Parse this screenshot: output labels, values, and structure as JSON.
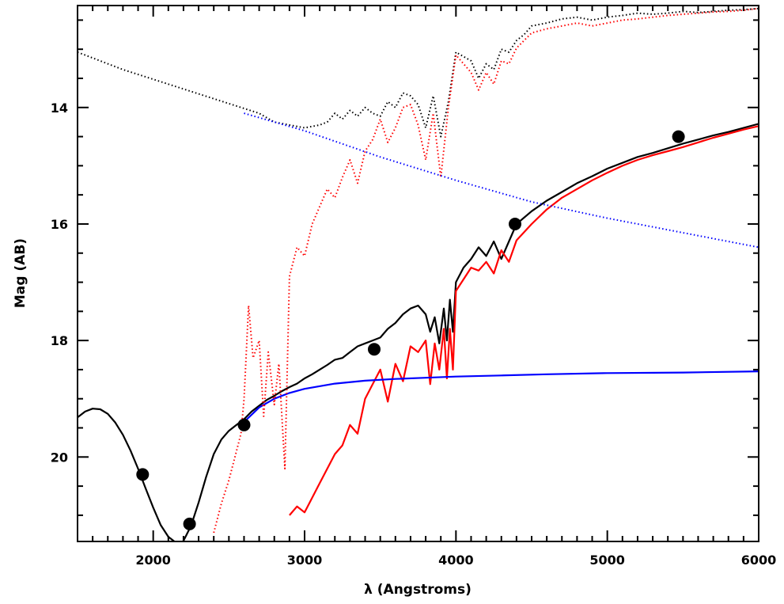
{
  "chart_data": {
    "type": "line",
    "title": "",
    "xlabel": "λ (Angstroms)",
    "ylabel": "Mag (AB)",
    "xlim": [
      1500,
      6000
    ],
    "ylim": [
      21.45,
      12.25
    ],
    "y_inverted": true,
    "x_ticks": [
      2000,
      3000,
      4000,
      5000,
      6000
    ],
    "x_tick_labels": [
      "2000",
      "3000",
      "4000",
      "5000",
      "6000"
    ],
    "y_ticks": [
      14,
      16,
      18,
      20
    ],
    "y_tick_labels": [
      "14",
      "16",
      "18",
      "20"
    ],
    "grid": false,
    "legend": "none",
    "colors": {
      "black": "#000000",
      "red": "#ff0000",
      "blue": "#0000ff"
    },
    "series": [
      {
        "style": "solid",
        "color": "#000000",
        "x": [
          1500,
          1550,
          1600,
          1650,
          1700,
          1750,
          1800,
          1850,
          1900,
          1950,
          2000,
          2050,
          2100,
          2150,
          2175,
          2200,
          2250,
          2300,
          2350,
          2400,
          2450,
          2500,
          2550,
          2600,
          2650,
          2700,
          2750,
          2800,
          2850,
          2900,
          2950,
          3000,
          3050,
          3100,
          3150,
          3200,
          3250,
          3300,
          3350,
          3400,
          3450,
          3500,
          3550,
          3600,
          3650,
          3700,
          3750,
          3800,
          3830,
          3860,
          3890,
          3920,
          3940,
          3960,
          3980,
          4000,
          4050,
          4100,
          4150,
          4200,
          4250,
          4300,
          4350,
          4400,
          4500,
          4600,
          4700,
          4800,
          4900,
          5000,
          5100,
          5200,
          5300,
          5400,
          5500,
          5600,
          5700,
          5800,
          5900,
          6000
        ],
        "y": [
          19.32,
          19.22,
          19.17,
          19.18,
          19.26,
          19.41,
          19.62,
          19.89,
          20.2,
          20.54,
          20.87,
          21.17,
          21.37,
          21.47,
          21.48,
          21.44,
          21.18,
          20.78,
          20.34,
          19.95,
          19.7,
          19.55,
          19.45,
          19.35,
          19.22,
          19.12,
          19.02,
          18.95,
          18.87,
          18.8,
          18.74,
          18.65,
          18.58,
          18.5,
          18.42,
          18.33,
          18.3,
          18.2,
          18.1,
          18.05,
          18.0,
          17.95,
          17.8,
          17.7,
          17.55,
          17.45,
          17.4,
          17.55,
          17.85,
          17.6,
          18.05,
          17.45,
          18.0,
          17.3,
          17.85,
          17.0,
          16.75,
          16.6,
          16.4,
          16.55,
          16.3,
          16.6,
          16.3,
          16.0,
          15.78,
          15.6,
          15.45,
          15.3,
          15.18,
          15.05,
          14.95,
          14.85,
          14.78,
          14.7,
          14.62,
          14.55,
          14.48,
          14.42,
          14.35,
          14.28
        ]
      },
      {
        "style": "solid",
        "color": "#ff0000",
        "x": [
          2900,
          2950,
          3000,
          3050,
          3100,
          3150,
          3200,
          3250,
          3300,
          3350,
          3400,
          3450,
          3500,
          3550,
          3600,
          3650,
          3700,
          3750,
          3800,
          3830,
          3860,
          3890,
          3920,
          3940,
          3960,
          3980,
          4000,
          4050,
          4100,
          4150,
          4200,
          4250,
          4300,
          4350,
          4400,
          4500,
          4600,
          4700,
          4800,
          4900,
          5000,
          5100,
          5200,
          5300,
          5400,
          5500,
          5600,
          5700,
          5800,
          5900,
          6000
        ],
        "y": [
          21.0,
          20.85,
          20.95,
          20.7,
          20.45,
          20.2,
          19.95,
          19.8,
          19.45,
          19.6,
          19.0,
          18.75,
          18.5,
          19.05,
          18.4,
          18.7,
          18.1,
          18.2,
          18.0,
          18.75,
          18.05,
          18.5,
          17.8,
          18.65,
          17.8,
          18.5,
          17.15,
          16.95,
          16.75,
          16.8,
          16.65,
          16.85,
          16.45,
          16.65,
          16.28,
          16.0,
          15.75,
          15.55,
          15.4,
          15.25,
          15.12,
          15.0,
          14.9,
          14.82,
          14.75,
          14.68,
          14.6,
          14.52,
          14.45,
          14.38,
          14.32
        ]
      },
      {
        "style": "solid",
        "color": "#0000ff",
        "x": [
          2600,
          2700,
          2800,
          2900,
          3000,
          3200,
          3400,
          3600,
          3800,
          4000,
          4300,
          4600,
          5000,
          5500,
          6000
        ],
        "y": [
          19.4,
          19.15,
          19.0,
          18.9,
          18.83,
          18.74,
          18.69,
          18.66,
          18.64,
          18.62,
          18.6,
          18.58,
          18.56,
          18.55,
          18.53
        ]
      },
      {
        "style": "dotted",
        "color": "#000000",
        "x": [
          1500,
          1800,
          2100,
          2400,
          2700,
          2800,
          2900,
          3000,
          3100,
          3150,
          3200,
          3250,
          3300,
          3350,
          3400,
          3450,
          3500,
          3550,
          3600,
          3650,
          3700,
          3750,
          3800,
          3850,
          3900,
          3950,
          4000,
          4100,
          4150,
          4200,
          4250,
          4300,
          4350,
          4400,
          4450,
          4500,
          4600,
          4700,
          4800,
          4900,
          5000,
          5100,
          5200,
          5300,
          5400,
          5500,
          5600,
          5700,
          5800,
          5900,
          6000
        ],
        "y": [
          13.05,
          13.35,
          13.6,
          13.85,
          14.1,
          14.25,
          14.3,
          14.35,
          14.3,
          14.25,
          14.1,
          14.2,
          14.05,
          14.15,
          14.0,
          14.1,
          14.15,
          13.9,
          14.0,
          13.75,
          13.8,
          13.95,
          14.35,
          13.8,
          14.5,
          13.9,
          13.05,
          13.2,
          13.5,
          13.25,
          13.35,
          13.0,
          13.05,
          12.85,
          12.75,
          12.6,
          12.55,
          12.48,
          12.45,
          12.5,
          12.45,
          12.42,
          12.38,
          12.4,
          12.38,
          12.35,
          12.37,
          12.35,
          12.33,
          12.32,
          12.3
        ]
      },
      {
        "style": "dotted",
        "color": "#ff0000",
        "x": [
          2400,
          2450,
          2500,
          2550,
          2580,
          2600,
          2630,
          2660,
          2700,
          2730,
          2760,
          2800,
          2830,
          2870,
          2900,
          2950,
          3000,
          3050,
          3100,
          3150,
          3200,
          3250,
          3300,
          3350,
          3400,
          3450,
          3500,
          3550,
          3600,
          3650,
          3700,
          3750,
          3800,
          3850,
          3900,
          3950,
          4000,
          4100,
          4150,
          4200,
          4250,
          4300,
          4350,
          4400,
          4450,
          4500,
          4600,
          4700,
          4800,
          4900,
          5000,
          5100,
          5200,
          5300,
          5400,
          5500,
          5600,
          5700,
          5800,
          5900,
          6000
        ],
        "y": [
          21.3,
          20.8,
          20.4,
          19.9,
          19.6,
          19.0,
          17.4,
          18.3,
          18.0,
          19.3,
          18.2,
          19.1,
          18.4,
          20.2,
          16.9,
          16.4,
          16.55,
          16.0,
          15.7,
          15.4,
          15.55,
          15.2,
          14.9,
          15.3,
          14.75,
          14.55,
          14.2,
          14.6,
          14.35,
          14.0,
          13.95,
          14.3,
          14.9,
          14.1,
          15.2,
          14.0,
          13.1,
          13.4,
          13.7,
          13.4,
          13.6,
          13.2,
          13.25,
          12.98,
          12.85,
          12.72,
          12.65,
          12.6,
          12.55,
          12.6,
          12.55,
          12.5,
          12.48,
          12.45,
          12.42,
          12.4,
          12.38,
          12.36,
          12.35,
          12.33,
          12.3
        ]
      },
      {
        "style": "dotted",
        "color": "#0000ff",
        "x": [
          2600,
          3000,
          3500,
          4000,
          4500,
          5000,
          5500,
          6000
        ],
        "y": [
          14.1,
          14.4,
          14.85,
          15.25,
          15.62,
          15.9,
          16.15,
          16.4
        ]
      },
      {
        "style": "points",
        "color": "#000000",
        "x": [
          1930,
          2240,
          2600,
          3460,
          4390,
          5470
        ],
        "y": [
          20.3,
          21.15,
          19.45,
          18.15,
          16.0,
          14.5
        ]
      }
    ]
  }
}
